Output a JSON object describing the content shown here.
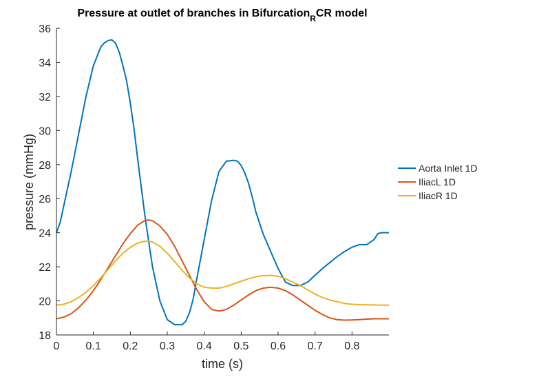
{
  "chart_data": {
    "type": "line",
    "title": "Pressure at outlet of branches in Bifurcation",
    "title_subscript": "R",
    "title_suffix": "CR model",
    "xlabel": "time (s)",
    "ylabel": "pressure (mmHg)",
    "xlim": [
      0,
      0.9
    ],
    "ylim": [
      18,
      36
    ],
    "xticks": [
      0,
      0.1,
      0.2,
      0.3,
      0.4,
      0.5,
      0.6,
      0.7,
      0.8
    ],
    "yticks": [
      18,
      20,
      22,
      24,
      26,
      28,
      30,
      32,
      34,
      36
    ],
    "grid": false,
    "legend_position": "outside-right",
    "series": [
      {
        "name": "Aorta Inlet 1D",
        "color": "#0072BD",
        "x": [
          0,
          0.01,
          0.02,
          0.04,
          0.06,
          0.08,
          0.1,
          0.12,
          0.13,
          0.14,
          0.15,
          0.16,
          0.17,
          0.18,
          0.19,
          0.2,
          0.21,
          0.22,
          0.24,
          0.26,
          0.28,
          0.3,
          0.32,
          0.34,
          0.35,
          0.36,
          0.37,
          0.38,
          0.4,
          0.42,
          0.44,
          0.46,
          0.48,
          0.49,
          0.5,
          0.51,
          0.52,
          0.53,
          0.54,
          0.56,
          0.58,
          0.6,
          0.62,
          0.64,
          0.66,
          0.68,
          0.7,
          0.72,
          0.74,
          0.76,
          0.78,
          0.8,
          0.82,
          0.84,
          0.86,
          0.87,
          0.88,
          0.89,
          0.9
        ],
        "values": [
          24.0,
          24.6,
          25.6,
          27.6,
          29.8,
          32.0,
          33.8,
          34.9,
          35.15,
          35.28,
          35.32,
          35.12,
          34.6,
          33.8,
          32.9,
          31.6,
          30.1,
          28.3,
          24.9,
          22.0,
          20.0,
          18.9,
          18.6,
          18.6,
          18.8,
          19.3,
          20.1,
          21.3,
          23.6,
          25.9,
          27.6,
          28.2,
          28.25,
          28.2,
          27.95,
          27.5,
          26.9,
          26.1,
          25.2,
          23.9,
          22.9,
          21.9,
          21.1,
          20.9,
          20.9,
          21.1,
          21.5,
          21.9,
          22.25,
          22.6,
          22.9,
          23.15,
          23.3,
          23.3,
          23.6,
          23.95,
          24.0,
          24.0,
          24.0
        ],
        "values_note_removed": true
      },
      {
        "name": "IliacL 1D",
        "color": "#D95319",
        "x": [
          0,
          0.02,
          0.04,
          0.06,
          0.08,
          0.1,
          0.12,
          0.14,
          0.16,
          0.18,
          0.2,
          0.22,
          0.24,
          0.25,
          0.26,
          0.28,
          0.3,
          0.32,
          0.34,
          0.36,
          0.38,
          0.4,
          0.42,
          0.44,
          0.46,
          0.48,
          0.5,
          0.52,
          0.54,
          0.56,
          0.58,
          0.6,
          0.62,
          0.64,
          0.66,
          0.68,
          0.7,
          0.72,
          0.74,
          0.76,
          0.78,
          0.8,
          0.82,
          0.84,
          0.86,
          0.88,
          0.9
        ],
        "values": [
          18.95,
          19.05,
          19.25,
          19.6,
          20.05,
          20.6,
          21.25,
          21.95,
          22.65,
          23.35,
          23.95,
          24.45,
          24.72,
          24.75,
          24.7,
          24.4,
          23.9,
          23.2,
          22.35,
          21.5,
          20.65,
          19.95,
          19.5,
          19.4,
          19.5,
          19.75,
          20.05,
          20.35,
          20.6,
          20.75,
          20.8,
          20.75,
          20.6,
          20.35,
          20.05,
          19.75,
          19.45,
          19.2,
          19.0,
          18.9,
          18.87,
          18.88,
          18.9,
          18.93,
          18.95,
          18.95,
          18.95
        ]
      },
      {
        "name": "IliacR 1D",
        "color": "#EDB120",
        "x": [
          0,
          0.02,
          0.04,
          0.06,
          0.08,
          0.1,
          0.12,
          0.14,
          0.16,
          0.18,
          0.2,
          0.22,
          0.24,
          0.25,
          0.26,
          0.28,
          0.3,
          0.32,
          0.34,
          0.36,
          0.38,
          0.4,
          0.42,
          0.44,
          0.46,
          0.48,
          0.5,
          0.52,
          0.54,
          0.56,
          0.58,
          0.6,
          0.62,
          0.64,
          0.66,
          0.68,
          0.7,
          0.72,
          0.74,
          0.76,
          0.78,
          0.8,
          0.82,
          0.84,
          0.86,
          0.88,
          0.9
        ],
        "values": [
          19.75,
          19.8,
          19.95,
          20.2,
          20.5,
          20.9,
          21.35,
          21.85,
          22.35,
          22.8,
          23.15,
          23.4,
          23.5,
          23.5,
          23.45,
          23.2,
          22.8,
          22.3,
          21.8,
          21.35,
          21.0,
          20.8,
          20.75,
          20.75,
          20.85,
          21.0,
          21.15,
          21.3,
          21.42,
          21.48,
          21.5,
          21.45,
          21.3,
          21.1,
          20.9,
          20.65,
          20.4,
          20.2,
          20.05,
          19.95,
          19.85,
          19.8,
          19.78,
          19.77,
          19.76,
          19.75,
          19.75
        ]
      }
    ]
  }
}
